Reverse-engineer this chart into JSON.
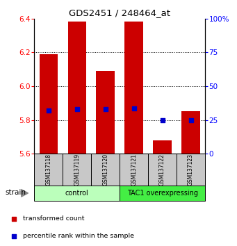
{
  "title": "GDS2451 / 248464_at",
  "samples": [
    "GSM137118",
    "GSM137119",
    "GSM137120",
    "GSM137121",
    "GSM137122",
    "GSM137123"
  ],
  "bar_bottoms": [
    5.6,
    5.6,
    5.6,
    5.6,
    5.6,
    5.6
  ],
  "bar_tops": [
    6.19,
    6.38,
    6.09,
    6.38,
    5.68,
    5.85
  ],
  "percentile_values": [
    5.855,
    5.865,
    5.862,
    5.868,
    5.8,
    5.8
  ],
  "ylim": [
    5.6,
    6.4
  ],
  "yticks_left": [
    5.6,
    5.8,
    6.0,
    6.2,
    6.4
  ],
  "yticks_right": [
    0,
    25,
    50,
    75,
    100
  ],
  "bar_color": "#cc0000",
  "percentile_color": "#0000cc",
  "groups": [
    {
      "label": "control",
      "indices": [
        0,
        1,
        2
      ],
      "color": "#bbffbb"
    },
    {
      "label": "TAC1 overexpressing",
      "indices": [
        3,
        4,
        5
      ],
      "color": "#44ee44"
    }
  ],
  "strain_label": "strain",
  "legend_items": [
    {
      "color": "#cc0000",
      "label": "transformed count"
    },
    {
      "color": "#0000cc",
      "label": "percentile rank within the sample"
    }
  ],
  "bar_width": 0.65,
  "sample_box_color": "#c8c8c8",
  "right_axis_100_label": "100%",
  "right_axis_labels": [
    "0",
    "25",
    "50",
    "75",
    "100%"
  ]
}
